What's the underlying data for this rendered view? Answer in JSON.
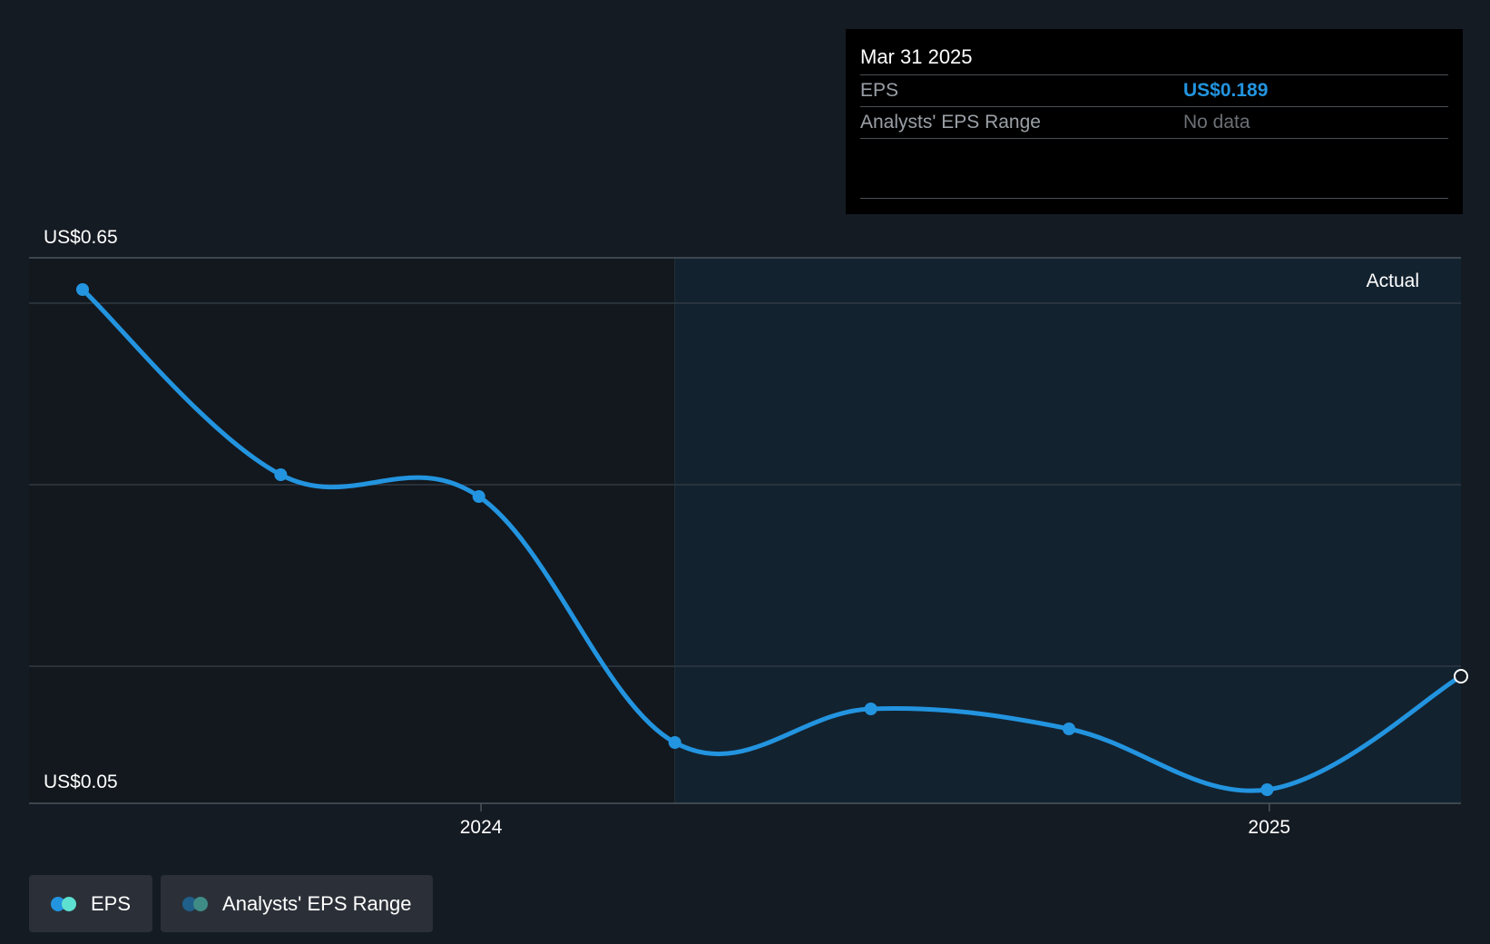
{
  "colors": {
    "background": "#151b23",
    "forecast_band": "#13222f",
    "line": "#2394df",
    "gridline": "#2f3942",
    "axis": "#4b545c",
    "legend_eps_a": "#2394df",
    "legend_eps_b": "#5ee0d0",
    "legend_range_a": "#1f5f8a",
    "legend_range_b": "#3f8c86"
  },
  "tooltip": {
    "date": "Mar 31 2025",
    "rows": [
      {
        "label": "EPS",
        "value": "US$0.189"
      },
      {
        "label": "Analysts' EPS Range",
        "value": "No data"
      }
    ]
  },
  "region_label": "Actual",
  "legend": [
    {
      "label": "EPS",
      "icon": "eps-dots-icon"
    },
    {
      "label": "Analysts' EPS Range",
      "icon": "range-dots-icon"
    }
  ],
  "chart_data": {
    "type": "line",
    "title": "",
    "xlabel": "",
    "ylabel": "",
    "y_top_label": "US$0.65",
    "y_bottom_label": "US$0.05",
    "ylim": [
      0.05,
      0.65
    ],
    "xlim": [
      "2023-06-01",
      "2025-03-31"
    ],
    "x_ticks": [
      {
        "date": "2024-01-01",
        "label": "2024"
      },
      {
        "date": "2025-01-01",
        "label": "2025"
      }
    ],
    "y_gridlines": [
      0.6,
      0.4,
      0.2
    ],
    "highlight_start": "2024-03-31",
    "grid": true,
    "legend_position": "bottom-left",
    "series": [
      {
        "name": "EPS",
        "points": [
          {
            "x": "2023-06-30",
            "y": 0.615
          },
          {
            "x": "2023-09-30",
            "y": 0.411
          },
          {
            "x": "2023-12-31",
            "y": 0.387
          },
          {
            "x": "2024-03-31",
            "y": 0.116
          },
          {
            "x": "2024-06-30",
            "y": 0.153
          },
          {
            "x": "2024-09-30",
            "y": 0.131
          },
          {
            "x": "2024-12-31",
            "y": 0.064
          },
          {
            "x": "2025-03-31",
            "y": 0.189
          }
        ]
      }
    ]
  }
}
